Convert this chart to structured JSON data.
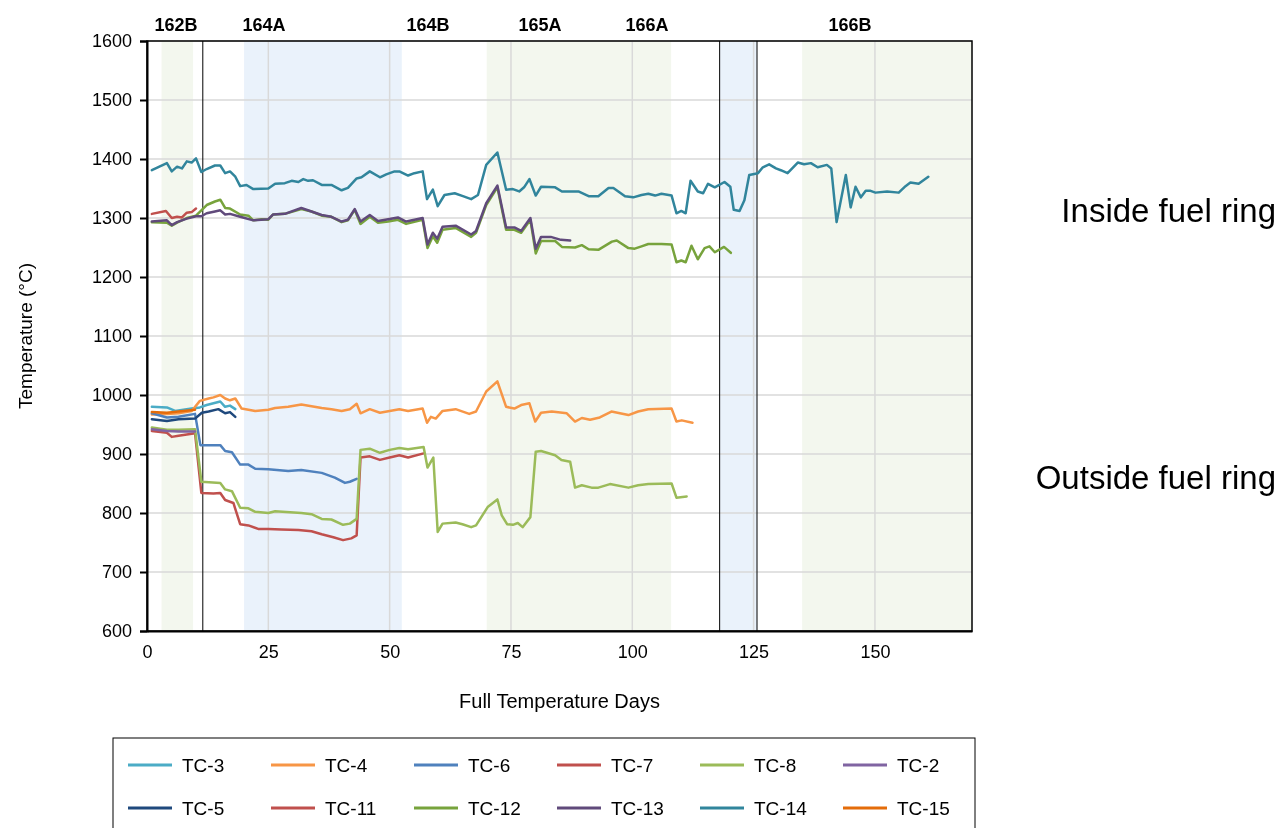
{
  "chart_data": {
    "type": "line",
    "xlabel": "Full Temperature Days",
    "ylabel": "Temperature (°C)",
    "xlim": [
      0,
      170
    ],
    "xticks": [
      0,
      25,
      50,
      75,
      100,
      125,
      150
    ],
    "ylim": [
      600,
      1600
    ],
    "yticks": [
      600,
      700,
      800,
      900,
      1000,
      1100,
      1200,
      1300,
      1400,
      1500,
      1600
    ],
    "grid": true,
    "legend": "bottom",
    "line_style": "solid",
    "marker": "none",
    "bands": [
      {
        "axis": "x",
        "from": 3,
        "to": 9.5,
        "color": "#f3f7ee"
      },
      {
        "axis": "x",
        "from": 20,
        "to": 52.5,
        "color": "#eaf2fb"
      },
      {
        "axis": "x",
        "from": 70,
        "to": 108,
        "color": "#f3f7ee"
      },
      {
        "axis": "x",
        "from": 118,
        "to": 125.7,
        "color": "#eaf2fb"
      },
      {
        "axis": "x",
        "from": 135,
        "to": 170,
        "color": "#f3f7ee"
      }
    ],
    "ref_lines": [
      {
        "axis": "x",
        "value": 11.5,
        "color": "#000000"
      },
      {
        "axis": "x",
        "value": 118,
        "color": "#000000"
      },
      {
        "axis": "x",
        "value": 125.7,
        "color": "#000000"
      }
    ],
    "annotations": [
      "162B",
      "164A",
      "164B",
      "165A",
      "166A",
      "166B",
      "Inside fuel ring",
      "Outside fuel ring"
    ],
    "series": [
      {
        "name": "TC-3",
        "color": "#4bacc6",
        "x": [
          1,
          4.1,
          5.8,
          9.2,
          10.9,
          12.3,
          13.7,
          15.1,
          16.1,
          17.1,
          18.2
        ],
        "values": [
          980,
          979,
          973,
          977,
          979,
          983,
          986,
          989,
          980,
          982,
          976
        ]
      },
      {
        "name": "TC-4",
        "color": "#f79646",
        "x": [
          1,
          4.1,
          6.5,
          9.2,
          10.9,
          12.7,
          13.7,
          15.1,
          16.1,
          17.1,
          18.2,
          19.5,
          22.3,
          25,
          26.4,
          29.1,
          31.8,
          33.9,
          36,
          38,
          40.1,
          41.8,
          43.2,
          44,
          45.9,
          48,
          50,
          52,
          53.8,
          56.8,
          57.7,
          58.5,
          59.5,
          60.9,
          63.6,
          66.4,
          67.8,
          69.9,
          72.2,
          74,
          75.7,
          77.1,
          78.8,
          80,
          81.2,
          83.4,
          86.5,
          88.2,
          89.6,
          91.3,
          93.3,
          95.7,
          99.2,
          101.2,
          103.3,
          108.1,
          109.1,
          110.2,
          112.4
        ],
        "values": [
          967,
          968,
          969,
          973,
          990,
          994,
          996,
          1000,
          994,
          991,
          994,
          977,
          973,
          975,
          978,
          980,
          984,
          981,
          978,
          976,
          973,
          976,
          985,
          969,
          976,
          970,
          973,
          976,
          973,
          977,
          953,
          963,
          960,
          973,
          976,
          968,
          972,
          1006,
          1023,
          980,
          977,
          983,
          986,
          955,
          970,
          972,
          969,
          955,
          961,
          958,
          962,
          972,
          966,
          972,
          976,
          977,
          955,
          957,
          953
        ]
      },
      {
        "name": "TC-6",
        "color": "#4f81bd",
        "x": [
          1,
          4.1,
          6.5,
          9.9,
          11,
          15.1,
          16.1,
          17.5,
          19.2,
          20.9,
          22.3,
          25,
          29.1,
          31.8,
          36,
          38.7,
          40.8,
          41.8,
          43.2
        ],
        "values": [
          969,
          962,
          963,
          968,
          915,
          915,
          905,
          903,
          882,
          882,
          875,
          874,
          871,
          873,
          868,
          860,
          851,
          853,
          858
        ]
      },
      {
        "name": "TC-7",
        "color": "#c0504d",
        "x": [
          1,
          4.1,
          5.1,
          6.5,
          9.9,
          11.2,
          13.7,
          15.1,
          16.1,
          17.8,
          19.2,
          20.9,
          22.9,
          25,
          27.7,
          31.2,
          33.9,
          36,
          38.4,
          40.4,
          42.1,
          43.2,
          44,
          45.9,
          48,
          50,
          52,
          53.8,
          57
        ],
        "values": [
          939,
          936,
          929,
          931,
          935,
          834,
          833,
          834,
          822,
          817,
          781,
          779,
          773,
          773,
          772,
          771,
          769,
          764,
          759,
          754,
          757,
          762,
          894,
          896,
          890,
          894,
          898,
          894,
          901
        ]
      },
      {
        "name": "TC-8",
        "color": "#9bbb59",
        "x": [
          1,
          4.1,
          6.5,
          9.9,
          11.2,
          15.1,
          16.1,
          17.5,
          19.2,
          20.9,
          22.3,
          25,
          26.4,
          31.8,
          33.9,
          36,
          38,
          40.4,
          41.8,
          43.2,
          44,
          45.9,
          48,
          50,
          52,
          53.8,
          57,
          57.8,
          59,
          59.9,
          60.9,
          63.6,
          65,
          66.8,
          67.8,
          70.2,
          72.2,
          73.1,
          74.2,
          75.4,
          76.4,
          77.4,
          79,
          80.1,
          81.2,
          84.1,
          85.4,
          87.2,
          88.2,
          89.6,
          91.6,
          93,
          95.4,
          99.2,
          101.2,
          103.3,
          108.1,
          109.1,
          111.2
        ],
        "values": [
          945,
          941,
          941,
          942,
          853,
          851,
          840,
          837,
          809,
          808,
          802,
          800,
          803,
          800,
          798,
          790,
          789,
          780,
          782,
          790,
          907,
          909,
          902,
          907,
          910,
          908,
          912,
          877,
          894,
          768,
          782,
          784,
          781,
          776,
          779,
          810,
          823,
          796,
          781,
          780,
          783,
          776,
          793,
          904,
          905,
          898,
          890,
          887,
          843,
          847,
          843,
          843,
          849,
          843,
          847,
          849,
          850,
          826,
          828
        ]
      },
      {
        "name": "TC-2",
        "color": "#8064a2",
        "x": [
          1,
          4.1,
          6.5,
          9.9
        ],
        "values": [
          942,
          939,
          938,
          938
        ]
      },
      {
        "name": "TC-5",
        "color": "#1f497d",
        "x": [
          1,
          4.1,
          6.5,
          9.9,
          11.3,
          12.7,
          14.7,
          16.1,
          17.1,
          18.2
        ],
        "values": [
          959,
          956,
          959,
          960,
          970,
          972,
          976,
          969,
          971,
          963
        ]
      },
      {
        "name": "TC-11",
        "color": "#c0504d",
        "x": [
          1,
          3.9,
          5.1,
          6.2,
          7.2,
          8.2,
          9.2,
          10.1
        ],
        "values": [
          1307,
          1312,
          1300,
          1302,
          1301,
          1309,
          1310,
          1316
        ]
      },
      {
        "name": "TC-12",
        "color": "#77a33c",
        "x": [
          1,
          4.1,
          5.1,
          6.2,
          8.2,
          10.1,
          12.3,
          14,
          15.1,
          16.1,
          17.1,
          19.2,
          20.9,
          21.9,
          23.6,
          25,
          26,
          28.4,
          31.8,
          33.9,
          36,
          38,
          40.1,
          41.4,
          42.8,
          44,
          45.9,
          47.6,
          49.7,
          51.7,
          53.4,
          56.8,
          57.8,
          58.9,
          59.8,
          60.9,
          63.6,
          66.8,
          67.8,
          69.9,
          72.2,
          74,
          75.7,
          77.1,
          79,
          80.1,
          81.2,
          84.1,
          85.5,
          88.2,
          89.6,
          91,
          93,
          95.8,
          96.8,
          99.2,
          100.5,
          101.9,
          103.3,
          106,
          108.1,
          109.1,
          110.1,
          111,
          112.2,
          113.5,
          114.9,
          115.9,
          117,
          118.9,
          120.3
        ],
        "values": [
          1293,
          1292,
          1287,
          1292,
          1300,
          1304,
          1322,
          1328,
          1331,
          1317,
          1316,
          1306,
          1304,
          1296,
          1298,
          1297,
          1306,
          1307,
          1315,
          1311,
          1304,
          1302,
          1293,
          1296,
          1314,
          1290,
          1302,
          1292,
          1294,
          1297,
          1290,
          1297,
          1249,
          1269,
          1258,
          1280,
          1283,
          1268,
          1275,
          1322,
          1352,
          1280,
          1280,
          1275,
          1297,
          1240,
          1261,
          1261,
          1251,
          1250,
          1254,
          1247,
          1246,
          1260,
          1262,
          1249,
          1248,
          1252,
          1256,
          1256,
          1255,
          1225,
          1228,
          1225,
          1253,
          1230,
          1249,
          1252,
          1242,
          1251,
          1241
        ]
      },
      {
        "name": "TC-13",
        "color": "#604a7b",
        "x": [
          1,
          4.1,
          5.1,
          6.2,
          8.2,
          10.1,
          11.2,
          12.3,
          14,
          15.1,
          16.1,
          17.1,
          19.2,
          21.9,
          25,
          26,
          28.4,
          31.8,
          33.9,
          36,
          38,
          40.1,
          41.4,
          42.8,
          44,
          45.9,
          47.6,
          49.7,
          51.7,
          53.4,
          56.8,
          57.8,
          58.9,
          59.8,
          60.9,
          63.6,
          66.8,
          67.8,
          69.9,
          72.2,
          74,
          75.7,
          77.1,
          79,
          80.1,
          81.2,
          83.2,
          85.3,
          87.2
        ],
        "values": [
          1294,
          1296,
          1288,
          1293,
          1299,
          1303,
          1303,
          1308,
          1311,
          1313,
          1306,
          1307,
          1302,
          1296,
          1298,
          1306,
          1307,
          1317,
          1311,
          1305,
          1302,
          1294,
          1297,
          1315,
          1294,
          1305,
          1295,
          1298,
          1301,
          1294,
          1300,
          1255,
          1275,
          1265,
          1285,
          1287,
          1272,
          1278,
          1325,
          1355,
          1284,
          1284,
          1278,
          1300,
          1248,
          1268,
          1268,
          1263,
          1262
        ]
      },
      {
        "name": "TC-14",
        "color": "#31859c",
        "x": [
          1,
          4.1,
          5.1,
          6.2,
          7.2,
          8.2,
          9.2,
          10.1,
          11.2,
          12.3,
          14,
          15.1,
          16.1,
          17.1,
          18.2,
          19.2,
          20.5,
          21.9,
          25,
          26.4,
          28.4,
          29.8,
          31.2,
          32.2,
          33.2,
          34.2,
          36,
          38,
          40.1,
          41.4,
          43.2,
          44.2,
          45.9,
          48,
          49.3,
          51,
          52,
          53.8,
          55.1,
          56.8,
          57.7,
          58.9,
          59.9,
          61.3,
          63.4,
          65.1,
          66.8,
          68.2,
          69.9,
          72.2,
          74,
          75.4,
          76.7,
          77.7,
          78.8,
          80.1,
          81.2,
          84.1,
          85.5,
          88.9,
          91,
          93,
          95.1,
          96.1,
          98.5,
          100.2,
          101.9,
          103.3,
          104.7,
          106,
          108.1,
          109.1,
          110.1,
          111,
          112,
          113.5,
          114.6,
          115.6,
          117,
          119,
          120.2,
          120.9,
          122.1,
          123.1,
          124.1,
          125.9,
          126.9,
          128.2,
          129.6,
          130.6,
          132,
          134.1,
          135.4,
          136.8,
          138.2,
          140.1,
          141,
          142.1,
          144,
          145,
          146,
          147.1,
          148.1,
          149.1,
          150.1,
          152.5,
          154.9,
          156.3,
          157.3,
          159,
          161
        ],
        "values": [
          1381,
          1393,
          1379,
          1387,
          1384,
          1396,
          1394,
          1401,
          1378,
          1383,
          1389,
          1389,
          1376,
          1379,
          1370,
          1354,
          1356,
          1349,
          1350,
          1358,
          1359,
          1363,
          1361,
          1366,
          1363,
          1364,
          1356,
          1356,
          1347,
          1351,
          1367,
          1369,
          1379,
          1369,
          1374,
          1379,
          1379,
          1372,
          1376,
          1379,
          1332,
          1348,
          1320,
          1339,
          1342,
          1337,
          1332,
          1339,
          1390,
          1411,
          1348,
          1349,
          1345,
          1352,
          1366,
          1338,
          1353,
          1352,
          1345,
          1345,
          1337,
          1337,
          1351,
          1351,
          1337,
          1335,
          1339,
          1341,
          1338,
          1341,
          1338,
          1308,
          1312,
          1308,
          1363,
          1345,
          1342,
          1358,
          1352,
          1361,
          1353,
          1314,
          1312,
          1330,
          1373,
          1376,
          1386,
          1391,
          1384,
          1381,
          1376,
          1394,
          1391,
          1393,
          1386,
          1390,
          1384,
          1293,
          1373,
          1318,
          1353,
          1335,
          1346,
          1346,
          1343,
          1345,
          1343,
          1354,
          1360,
          1358,
          1370
        ]
      },
      {
        "name": "TC-15",
        "color": "#e46c0a",
        "x": [
          1,
          4.1,
          6.5,
          9.9
        ],
        "values": [
          971,
          970,
          972,
          975
        ]
      }
    ]
  }
}
